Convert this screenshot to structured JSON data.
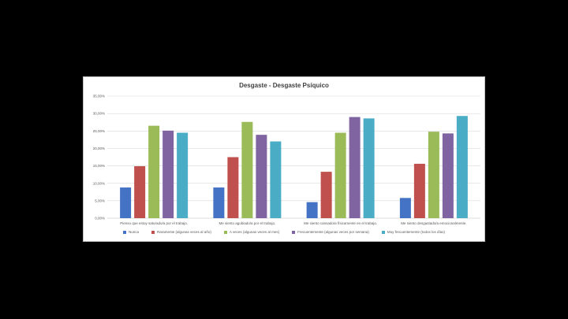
{
  "chart_data": {
    "type": "bar",
    "title": "Desgaste - Desgaste Psíquico",
    "categories": [
      "Pienso que estoy saturado/a por el trabajo.",
      "Me siento agobiado/a por el trabajo.",
      "Me siento cansado/a físicamente en el trabajo.",
      "Me siento desgastado/a emocionalmente."
    ],
    "ylim": [
      0,
      35
    ],
    "yticks": [
      "0,00%",
      "5,00%",
      "10,00%",
      "15,00%",
      "20,00%",
      "25,00%",
      "30,00%",
      "35,00%"
    ],
    "grid": true,
    "legend_position": "bottom",
    "series": [
      {
        "name": "Nunca",
        "color": "#4472c4",
        "values": [
          8.8,
          8.8,
          4.6,
          5.8
        ]
      },
      {
        "name": "Raramente (algunas veces al año)",
        "color": "#c0504d",
        "values": [
          14.9,
          17.5,
          13.3,
          15.6
        ]
      },
      {
        "name": "A veces (algunas veces al mes)",
        "color": "#9bbb59",
        "values": [
          26.5,
          27.6,
          24.5,
          24.8
        ]
      },
      {
        "name": "Frecuentemente (algunas veces por semana)",
        "color": "#8064a2",
        "values": [
          25.1,
          23.9,
          29.0,
          24.3
        ]
      },
      {
        "name": "Muy frecuentemente (todos los días)",
        "color": "#4bacc6",
        "values": [
          24.5,
          22.0,
          28.6,
          29.3
        ]
      }
    ]
  }
}
